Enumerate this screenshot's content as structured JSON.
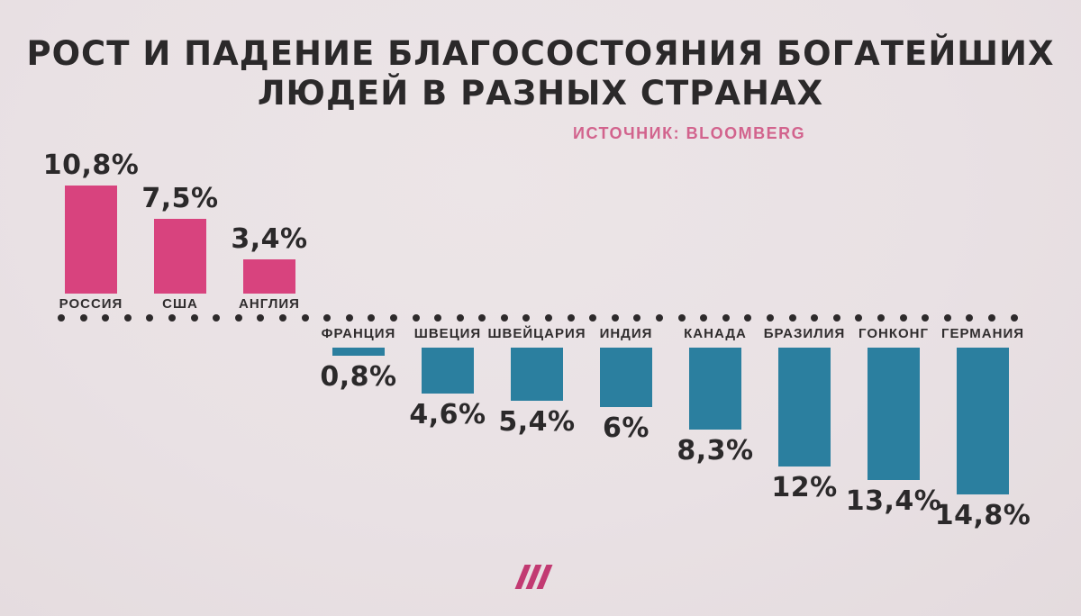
{
  "header": {
    "title_line1": "РОСТ И ПАДЕНИЕ БЛАГОСОСТОЯНИЯ БОГАТЕЙШИХ",
    "title_line2": "ЛЮДЕЙ В РАЗНЫХ СТРАНАХ",
    "source_label": "ИСТОЧНИК: BLOOMBERG"
  },
  "footer": {
    "logo_icon": "three-slashes-logo"
  },
  "colors": {
    "growth_bar": "#d8437e",
    "decline_bar": "#2b7f9f",
    "background": "#e9e1e4",
    "text_dark": "#2b292a",
    "source_text": "#d2638d",
    "zero_line_dots": "#2d2a2b",
    "logo": "#c23a72"
  },
  "chart_data": {
    "type": "bar",
    "title": "РОСТ И ПАДЕНИЕ БЛАГОСОСТОЯНИЯ БОГАТЕЙШИХ ЛЮДЕЙ В РАЗНЫХ СТРАНАХ",
    "source": "ИСТОЧНИК: BLOOMBERG",
    "unit": "%",
    "baseline": "dotted zero line, growth above, decline below",
    "legend_position": "none",
    "grid": false,
    "series": [
      {
        "name": "рост (growth)",
        "direction": "up",
        "color": "#d8437e",
        "points": [
          {
            "country": "РОССИЯ",
            "value": 10.8,
            "label": "10,8%"
          },
          {
            "country": "США",
            "value": 7.5,
            "label": "7,5%"
          },
          {
            "country": "АНГЛИЯ",
            "value": 3.4,
            "label": "3,4%"
          }
        ]
      },
      {
        "name": "падение (decline)",
        "direction": "down",
        "color": "#2b7f9f",
        "points": [
          {
            "country": "ФРАНЦИЯ",
            "value": 0.8,
            "label": "0,8%"
          },
          {
            "country": "ШВЕЦИЯ",
            "value": 4.6,
            "label": "4,6%"
          },
          {
            "country": "ШВЕЙЦАРИЯ",
            "value": 5.4,
            "label": "5,4%"
          },
          {
            "country": "ИНДИЯ",
            "value": 6,
            "label": "6%"
          },
          {
            "country": "КАНАДА",
            "value": 8.3,
            "label": "8,3%"
          },
          {
            "country": "БРАЗИЛИЯ",
            "value": 12,
            "label": "12%"
          },
          {
            "country": "ГОНКОНГ",
            "value": 13.4,
            "label": "13,4%"
          },
          {
            "country": "ГЕРМАНИЯ",
            "value": 14.8,
            "label": "14,8%"
          }
        ]
      }
    ]
  }
}
